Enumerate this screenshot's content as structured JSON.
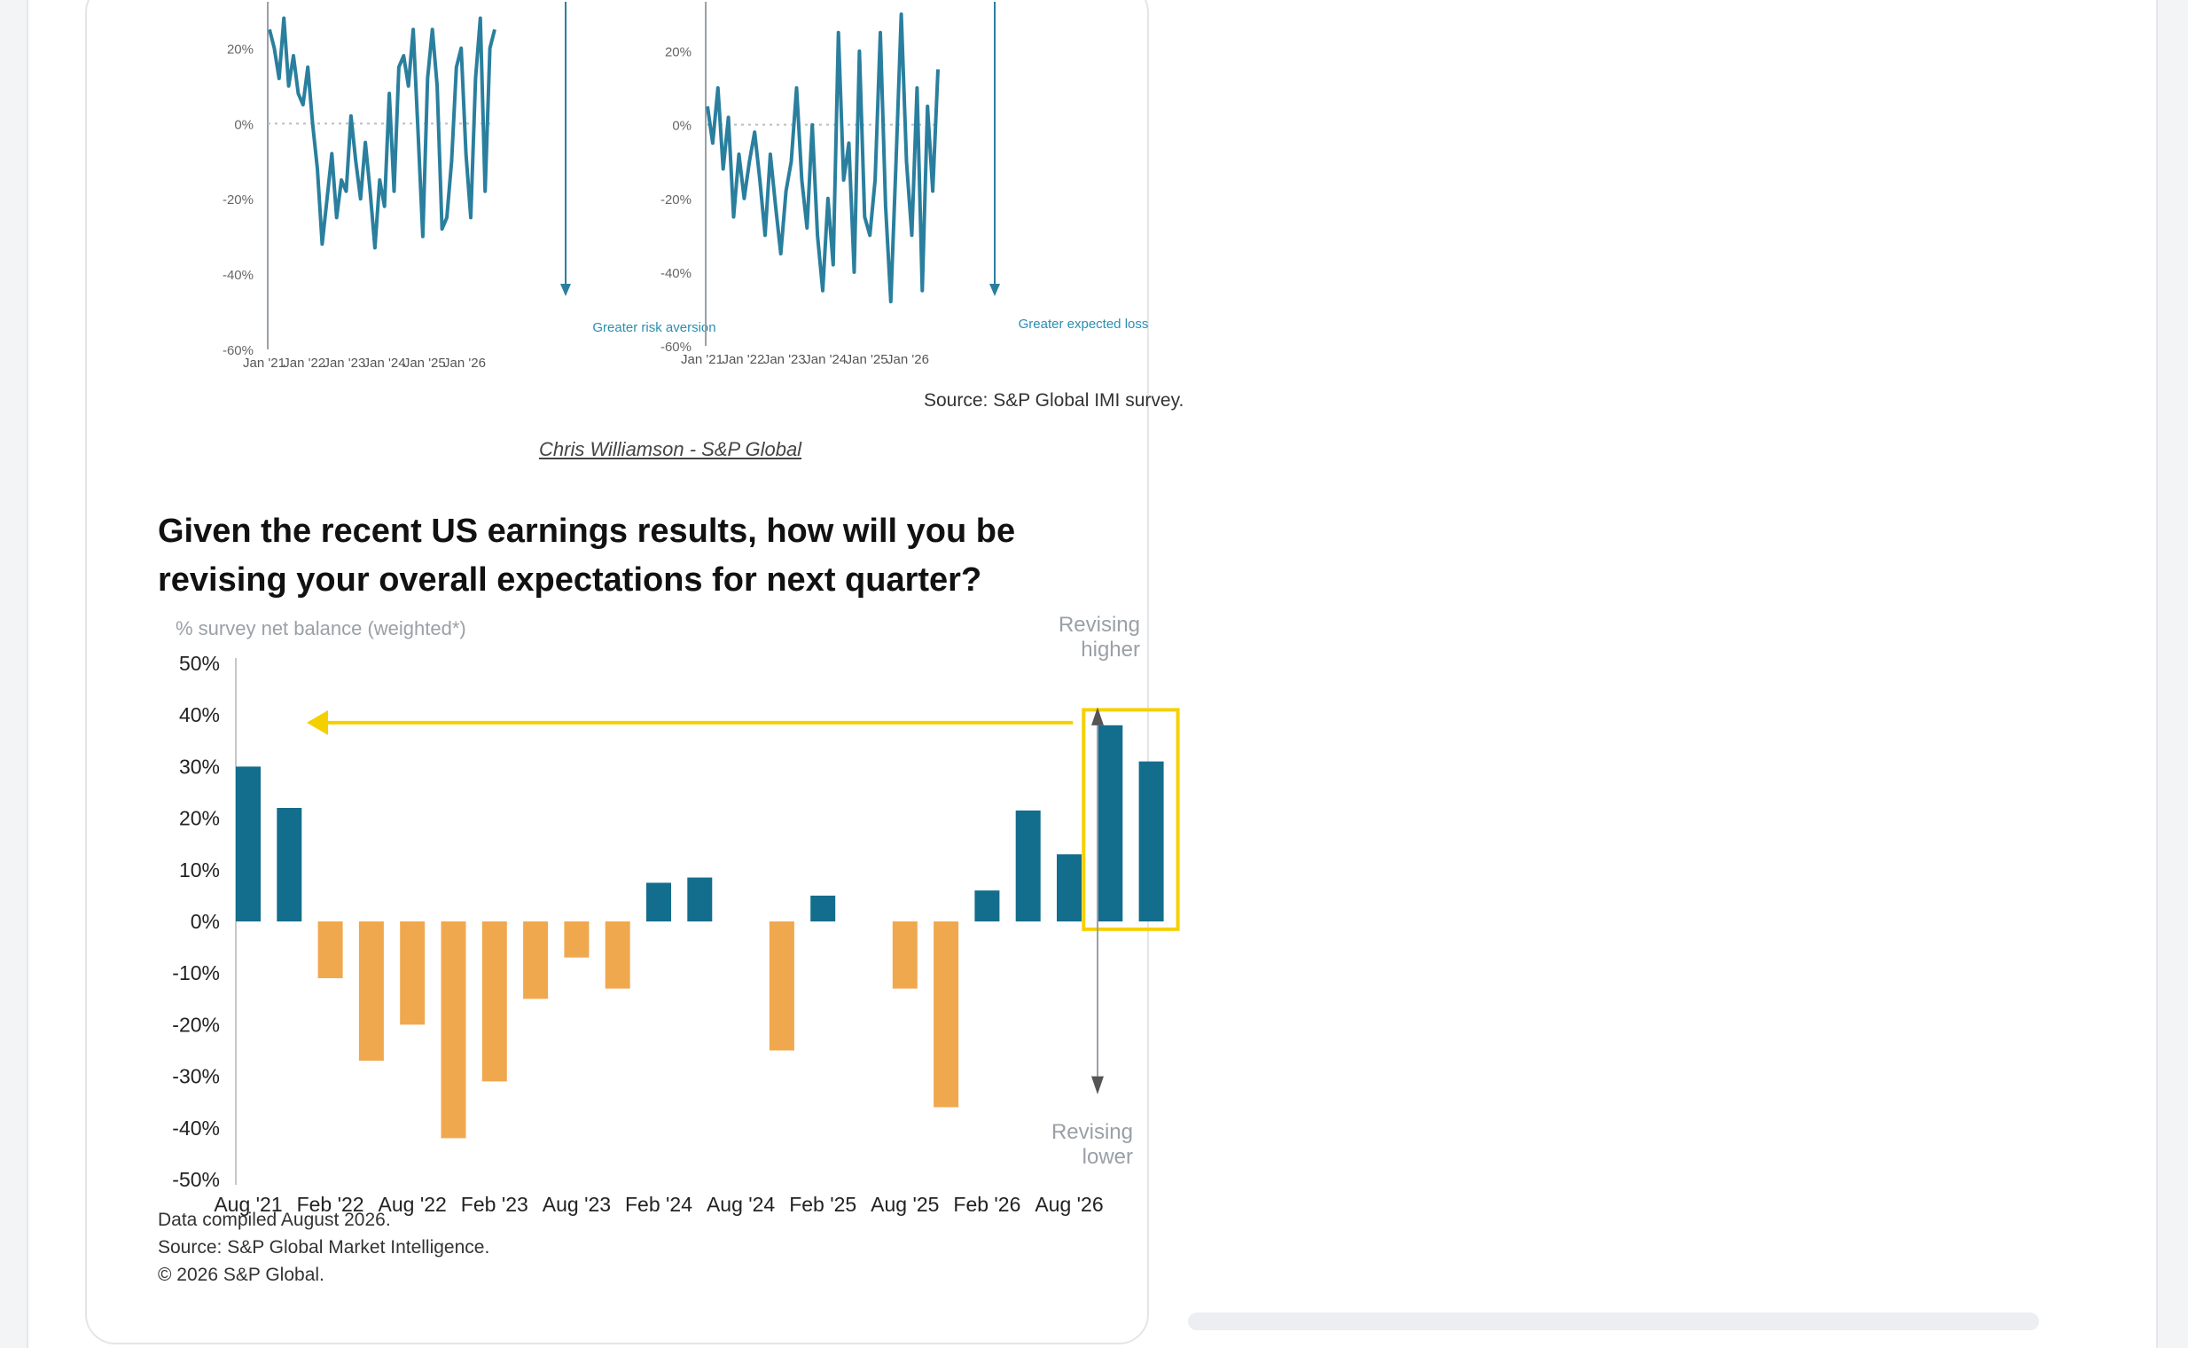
{
  "top_panels": {
    "left": {
      "y_ticks": [
        "20%",
        "0%",
        "-20%",
        "-40%",
        "-60%"
      ],
      "x_ticks": [
        "Jan '21",
        "Jan '22",
        "Jan '23",
        "Jan '24",
        "Jan '25",
        "Jan '26"
      ],
      "annotation": "Greater risk aversion"
    },
    "right": {
      "y_ticks": [
        "20%",
        "0%",
        "-20%",
        "-40%",
        "-60%"
      ],
      "x_ticks": [
        "Jan '21",
        "Jan '22",
        "Jan '23",
        "Jan '24",
        "Jan '25",
        "Jan '26"
      ],
      "annotation": "Greater expected loss"
    },
    "source": "Source: S&P Global IMI survey."
  },
  "byline": "Chris Williamson - S&P Global",
  "footnotes": {
    "line1": "Data compiled August 2026.",
    "line2": "Source: S&P Global Market Intelligence.",
    "line3": "© 2026 S&P Global."
  },
  "colors": {
    "positive": "#136d8c",
    "negative": "#f0a84e",
    "highlight": "#f5d000",
    "line": "#2a7f9e"
  },
  "chart_data": [
    {
      "type": "line",
      "title": "",
      "x_start": "Jan '21",
      "x_end": "Aug '26",
      "ylim": [
        -60,
        30
      ],
      "yticks": [
        20,
        0,
        -20,
        -40,
        -60
      ],
      "xticks": [
        "Jan '21",
        "Jan '22",
        "Jan '23",
        "Jan '24",
        "Jan '25",
        "Jan '26"
      ],
      "annotations": [
        "Greater risk aversion"
      ],
      "series": [
        {
          "values": [
            25,
            20,
            12,
            28,
            10,
            18,
            8,
            5,
            15,
            0,
            -12,
            -32,
            -20,
            -8,
            -25,
            -15,
            -18,
            2,
            -10,
            -20,
            -5,
            -18,
            -33,
            -15,
            -22,
            8,
            -18,
            15,
            18,
            10,
            25,
            -2,
            -30,
            12,
            25,
            10,
            -28,
            -25,
            -10,
            15,
            20,
            -8,
            -25,
            12,
            28,
            -18,
            20,
            25
          ]
        }
      ]
    },
    {
      "type": "line",
      "title": "",
      "x_start": "Jan '21",
      "x_end": "Aug '26",
      "ylim": [
        -60,
        30
      ],
      "yticks": [
        20,
        0,
        -20,
        -40,
        -60
      ],
      "xticks": [
        "Jan '21",
        "Jan '22",
        "Jan '23",
        "Jan '24",
        "Jan '25",
        "Jan '26"
      ],
      "annotations": [
        "Greater expected loss"
      ],
      "series": [
        {
          "values": [
            5,
            -5,
            10,
            -12,
            2,
            -25,
            -8,
            -20,
            -10,
            -2,
            -15,
            -30,
            -8,
            -22,
            -35,
            -18,
            -10,
            10,
            -15,
            -28,
            0,
            -30,
            -45,
            -20,
            -38,
            25,
            -15,
            -5,
            -40,
            20,
            -25,
            -30,
            -15,
            25,
            -22,
            -48,
            -10,
            30,
            -10,
            -30,
            10,
            -45,
            5,
            -18,
            15
          ]
        }
      ]
    },
    {
      "type": "bar",
      "title": "Given the recent US earnings results, how will you be revising your overall expectations for next quarter?",
      "ylabel": "% survey net balance (weighted*)",
      "ylim": [
        -50,
        50
      ],
      "yticks": [
        "50%",
        "40%",
        "30%",
        "20%",
        "10%",
        "0%",
        "-10%",
        "-20%",
        "-30%",
        "-40%",
        "-50%"
      ],
      "xticks": [
        "Aug '21",
        "Feb '22",
        "Aug '22",
        "Feb '23",
        "Aug '23",
        "Feb '24",
        "Aug '24",
        "Feb '25",
        "Aug '25",
        "Feb '26",
        "Aug '26"
      ],
      "annotations": {
        "upper": [
          "Revising",
          "higher"
        ],
        "lower": [
          "Revising",
          "lower"
        ]
      },
      "values": [
        30,
        22,
        -11,
        -27,
        -20,
        -42,
        -31,
        -15,
        -7,
        -13,
        7.5,
        8.5,
        null,
        -25,
        5,
        null,
        -13,
        -36,
        6,
        21.5,
        13,
        38,
        31
      ],
      "highlighted_range": [
        21,
        22
      ]
    }
  ]
}
